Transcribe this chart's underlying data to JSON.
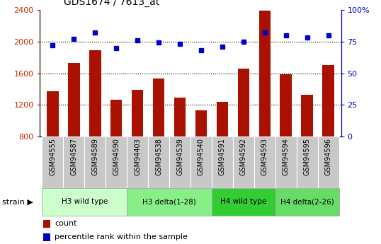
{
  "title": "GDS1674 / 7613_at",
  "samples": [
    "GSM94555",
    "GSM94587",
    "GSM94589",
    "GSM94590",
    "GSM94403",
    "GSM94538",
    "GSM94539",
    "GSM94540",
    "GSM94591",
    "GSM94592",
    "GSM94593",
    "GSM94594",
    "GSM94595",
    "GSM94596"
  ],
  "counts": [
    1370,
    1730,
    1890,
    1270,
    1390,
    1530,
    1290,
    1130,
    1240,
    1660,
    2390,
    1590,
    1330,
    1700
  ],
  "percentiles": [
    72,
    77,
    82,
    70,
    76,
    74,
    73,
    68,
    71,
    75,
    82,
    80,
    78,
    80
  ],
  "bar_color": "#aa1100",
  "dot_color": "#0000cc",
  "ylim_left": [
    800,
    2400
  ],
  "ylim_right": [
    0,
    100
  ],
  "yticks_left": [
    800,
    1200,
    1600,
    2000,
    2400
  ],
  "yticks_right": [
    0,
    25,
    50,
    75,
    100
  ],
  "groups": [
    {
      "label": "H3 wild type",
      "start": 0,
      "end": 4,
      "color": "#ccffcc"
    },
    {
      "label": "H3 delta(1-28)",
      "start": 4,
      "end": 8,
      "color": "#88ee88"
    },
    {
      "label": "H4 wild type",
      "start": 8,
      "end": 11,
      "color": "#33cc33"
    },
    {
      "label": "H4 delta(2-26)",
      "start": 11,
      "end": 14,
      "color": "#66dd66"
    }
  ],
  "strain_label": "strain",
  "legend_count_label": "count",
  "legend_percentile_label": "percentile rank within the sample",
  "tick_label_color_left": "#cc2200",
  "tick_label_color_right": "#0000cc",
  "background_color": "#ffffff",
  "bar_width": 0.55,
  "sample_bg_color": "#c8c8c8"
}
